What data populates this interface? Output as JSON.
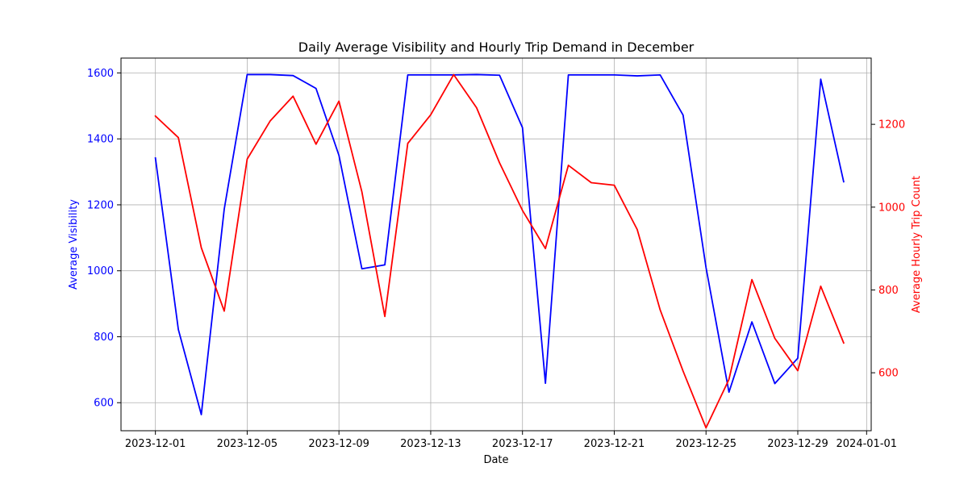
{
  "chart_data": {
    "type": "line",
    "title": "Daily Average Visibility and Hourly Trip Demand in December",
    "xlabel": "Date",
    "ylabel_left": "Average Visibility",
    "ylabel_right": "Average Hourly Trip Count",
    "xlim": [
      "2023-11-29.5",
      "2024-01-01.2"
    ],
    "ylim_left": [
      515,
      1645
    ],
    "ylim_right": [
      460,
      1360
    ],
    "x_ticks": [
      "2023-12-01",
      "2023-12-05",
      "2023-12-09",
      "2023-12-13",
      "2023-12-17",
      "2023-12-21",
      "2023-12-25",
      "2023-12-29",
      "2024-01-01"
    ],
    "y_ticks_left": [
      600,
      800,
      1000,
      1200,
      1400,
      1600
    ],
    "y_ticks_right": [
      600,
      800,
      1000,
      1200
    ],
    "grid": true,
    "colors": {
      "left_axis": "#0000ff",
      "right_axis": "#ff0000"
    },
    "x": [
      "2023-12-01",
      "2023-12-02",
      "2023-12-03",
      "2023-12-04",
      "2023-12-05",
      "2023-12-06",
      "2023-12-07",
      "2023-12-08",
      "2023-12-09",
      "2023-12-10",
      "2023-12-11",
      "2023-12-12",
      "2023-12-13",
      "2023-12-14",
      "2023-12-15",
      "2023-12-16",
      "2023-12-17",
      "2023-12-18",
      "2023-12-19",
      "2023-12-20",
      "2023-12-21",
      "2023-12-22",
      "2023-12-23",
      "2023-12-24",
      "2023-12-25",
      "2023-12-26",
      "2023-12-27",
      "2023-12-28",
      "2023-12-29",
      "2023-12-30",
      "2023-12-31"
    ],
    "series": [
      {
        "axis": "left",
        "color": "#0000ff",
        "values": [
          1342,
          822,
          564,
          1187,
          1595,
          1595,
          1592,
          1553,
          1350,
          1006,
          1018,
          1594,
          1594,
          1594,
          1595,
          1593,
          1434,
          659,
          1594,
          1594,
          1594,
          1591,
          1594,
          1472,
          1010,
          632,
          845,
          658,
          735,
          1581,
          1270
        ]
      },
      {
        "axis": "right",
        "color": "#ff0000",
        "values": [
          1220,
          1168,
          902,
          749,
          1116,
          1208,
          1268,
          1152,
          1256,
          1037,
          736,
          1154,
          1223,
          1320,
          1240,
          1107,
          992,
          900,
          1101,
          1059,
          1053,
          946,
          752,
          604,
          467,
          584,
          825,
          683,
          605,
          809,
          672
        ]
      }
    ]
  }
}
